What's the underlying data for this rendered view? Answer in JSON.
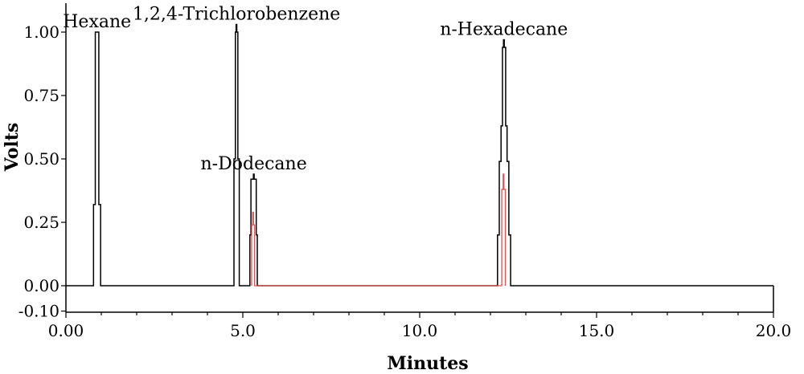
{
  "chart_data": {
    "type": "line",
    "xlabel": "Minutes",
    "ylabel": "Volts",
    "xlim": [
      0,
      20
    ],
    "ylim": [
      -0.1,
      1.1
    ],
    "x_ticks": [
      0,
      5,
      10,
      15,
      20
    ],
    "x_tick_labels": [
      "0.00",
      "5.0",
      "10.0",
      "15.0",
      "20.0"
    ],
    "y_ticks": [
      -0.1,
      0,
      0.25,
      0.5,
      0.75,
      1.0
    ],
    "y_tick_labels": [
      "-0.10",
      "0.00",
      "0.25",
      "0.50",
      "0.75",
      "1.00"
    ],
    "grid": false,
    "series": [
      {
        "color": "#000000",
        "points": [
          [
            0,
            0
          ],
          [
            0.78,
            0
          ],
          [
            0.78,
            0.32
          ],
          [
            0.83,
            0.32
          ],
          [
            0.83,
            1.0
          ],
          [
            0.93,
            1.0
          ],
          [
            0.93,
            0.32
          ],
          [
            0.98,
            0.32
          ],
          [
            0.98,
            0
          ],
          [
            4.75,
            0
          ],
          [
            4.75,
            0.5
          ],
          [
            4.79,
            0.5
          ],
          [
            4.79,
            1.0
          ],
          [
            4.81,
            1.0
          ],
          [
            4.81,
            1.03
          ],
          [
            4.83,
            1.03
          ],
          [
            4.83,
            1.0
          ],
          [
            4.86,
            1.0
          ],
          [
            4.86,
            0.5
          ],
          [
            4.9,
            0.5
          ],
          [
            4.9,
            0
          ],
          [
            5.2,
            0
          ],
          [
            5.2,
            0.2
          ],
          [
            5.23,
            0.2
          ],
          [
            5.23,
            0.42
          ],
          [
            5.3,
            0.42
          ],
          [
            5.3,
            0.44
          ],
          [
            5.32,
            0.44
          ],
          [
            5.32,
            0.42
          ],
          [
            5.38,
            0.42
          ],
          [
            5.38,
            0.2
          ],
          [
            5.41,
            0.2
          ],
          [
            5.41,
            0
          ],
          [
            12.2,
            0
          ],
          [
            12.2,
            0.2
          ],
          [
            12.25,
            0.2
          ],
          [
            12.25,
            0.49
          ],
          [
            12.3,
            0.49
          ],
          [
            12.3,
            0.63
          ],
          [
            12.34,
            0.63
          ],
          [
            12.34,
            0.94
          ],
          [
            12.37,
            0.94
          ],
          [
            12.37,
            0.97
          ],
          [
            12.39,
            0.97
          ],
          [
            12.39,
            0.94
          ],
          [
            12.43,
            0.94
          ],
          [
            12.43,
            0.63
          ],
          [
            12.47,
            0.63
          ],
          [
            12.47,
            0.49
          ],
          [
            12.52,
            0.49
          ],
          [
            12.52,
            0.2
          ],
          [
            12.57,
            0.2
          ],
          [
            12.57,
            0
          ],
          [
            20,
            0
          ]
        ]
      },
      {
        "color": "#e05050",
        "points": [
          [
            5.25,
            0
          ],
          [
            5.25,
            0.24
          ],
          [
            5.28,
            0.24
          ],
          [
            5.28,
            0.29
          ],
          [
            5.3,
            0.29
          ],
          [
            5.3,
            0.24
          ],
          [
            5.33,
            0.24
          ],
          [
            5.33,
            0
          ],
          [
            12.32,
            0
          ],
          [
            12.32,
            0.38
          ],
          [
            12.36,
            0.38
          ],
          [
            12.36,
            0.44
          ],
          [
            12.38,
            0.44
          ],
          [
            12.38,
            0.38
          ],
          [
            12.42,
            0.38
          ],
          [
            12.42,
            0
          ]
        ]
      }
    ],
    "annotations": [
      {
        "text": "Hexane",
        "x": 0.88,
        "y": 1.0
      },
      {
        "text": "1,2,4-Trichlorobenzene",
        "x": 4.82,
        "y": 1.03
      },
      {
        "text": "n-Dodecane",
        "x": 5.31,
        "y": 0.44
      },
      {
        "text": "n-Hexadecane",
        "x": 12.38,
        "y": 0.97
      }
    ]
  }
}
